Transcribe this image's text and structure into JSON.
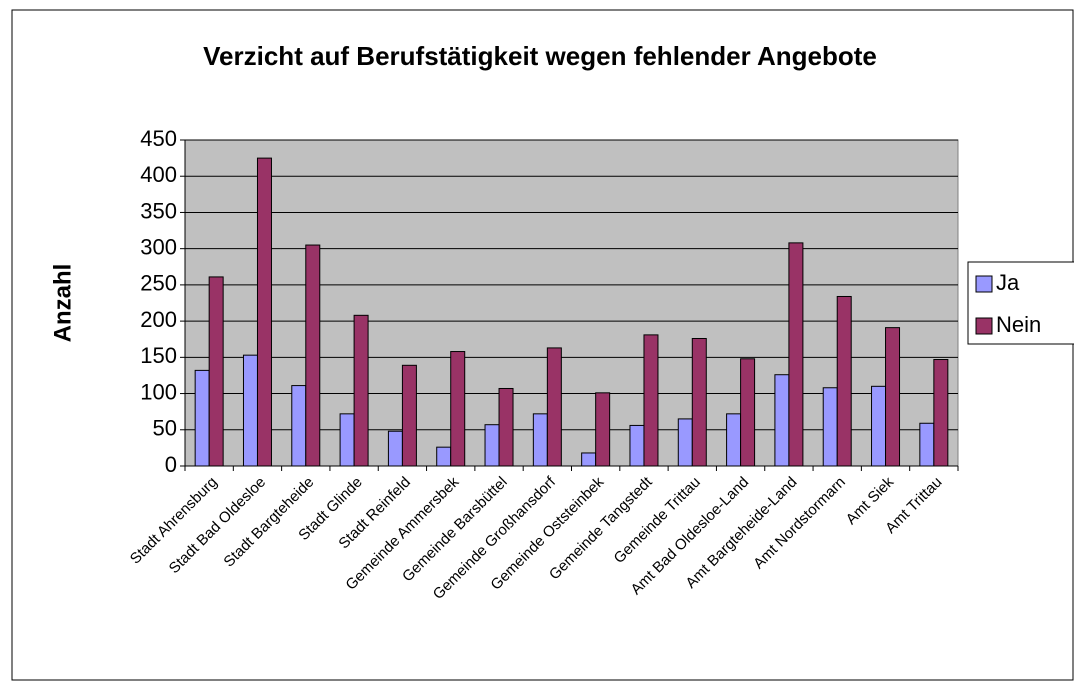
{
  "chart_data": {
    "type": "bar",
    "title": "Verzicht auf Berufstätigkeit wegen fehlender Angebote",
    "y_label": "Anzahl",
    "categories": [
      "Stadt Ahrensburg",
      "Stadt Bad Oldesloe",
      "Stadt Bargteheide",
      "Stadt Glinde",
      "Stadt Reinfeld",
      "Gemeinde Ammersbek",
      "Gemeinde Barsbüttel",
      "Gemeinde Großhansdorf",
      "Gemeinde Oststeinbek",
      "Gemeinde Tangstedt",
      "Gemeinde Trittau",
      "Amt Bad Oldesloe-Land",
      "Amt Bargteheide-Land",
      "Amt Nordstormarn",
      "Amt Siek",
      "Amt Trittau"
    ],
    "series": [
      {
        "name": "Ja",
        "color": "#9999ff",
        "values": [
          132,
          153,
          111,
          72,
          48,
          26,
          57,
          72,
          18,
          56,
          65,
          72,
          126,
          108,
          110,
          59
        ]
      },
      {
        "name": "Nein",
        "color": "#993366",
        "values": [
          261,
          425,
          305,
          208,
          139,
          158,
          107,
          163,
          101,
          181,
          176,
          148,
          308,
          234,
          191,
          147
        ]
      }
    ],
    "ylim": [
      0,
      450
    ],
    "yticks": [
      0,
      50,
      100,
      150,
      200,
      250,
      300,
      350,
      400,
      450
    ],
    "grid": true,
    "legend": "right",
    "plot_background": "#c0c0c0"
  }
}
